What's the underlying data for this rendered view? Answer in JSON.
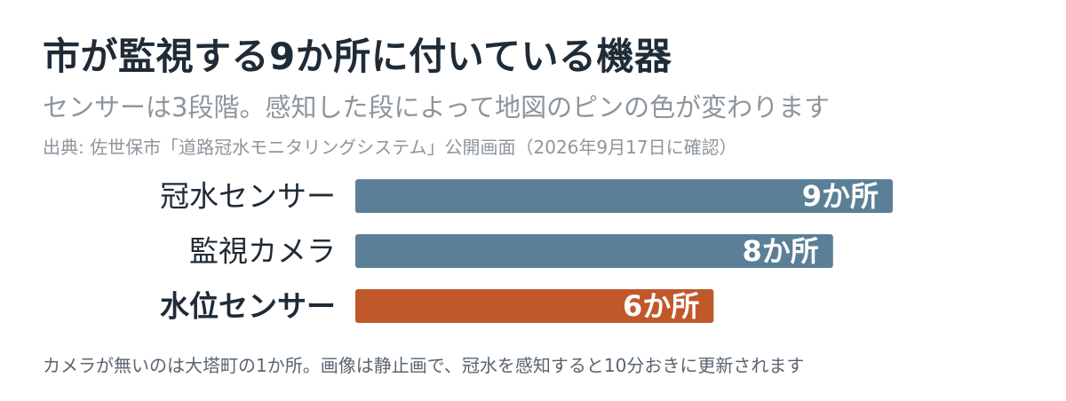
{
  "header": {
    "title": "市が監視する9か所に付いている機器",
    "subtitle": "センサーは3段階。感知した段によって地図のピンの色が変わります",
    "source": "出典: 佐世保市「道路冠水モニタリングシステム」公開画面（2026年9月17日に確認）"
  },
  "footnote": "カメラが無いのは大塔町の1か所。画像は静止画で、冠水を感知すると10分おきに更新されます",
  "chart_data": {
    "type": "bar",
    "orientation": "horizontal",
    "categories": [
      "冠水センサー",
      "監視カメラ",
      "水位センサー"
    ],
    "values": [
      9,
      8,
      6
    ],
    "value_labels": [
      "9か所",
      "8か所",
      "6か所"
    ],
    "unit": "か所",
    "highlight_category": "水位センサー",
    "colors": {
      "default": "#5b7f96",
      "highlight": "#c0582a",
      "label": "#1f2b36",
      "value_label": "#ffffff"
    },
    "xlim": [
      0,
      9
    ],
    "grid": false,
    "legend": "none"
  }
}
